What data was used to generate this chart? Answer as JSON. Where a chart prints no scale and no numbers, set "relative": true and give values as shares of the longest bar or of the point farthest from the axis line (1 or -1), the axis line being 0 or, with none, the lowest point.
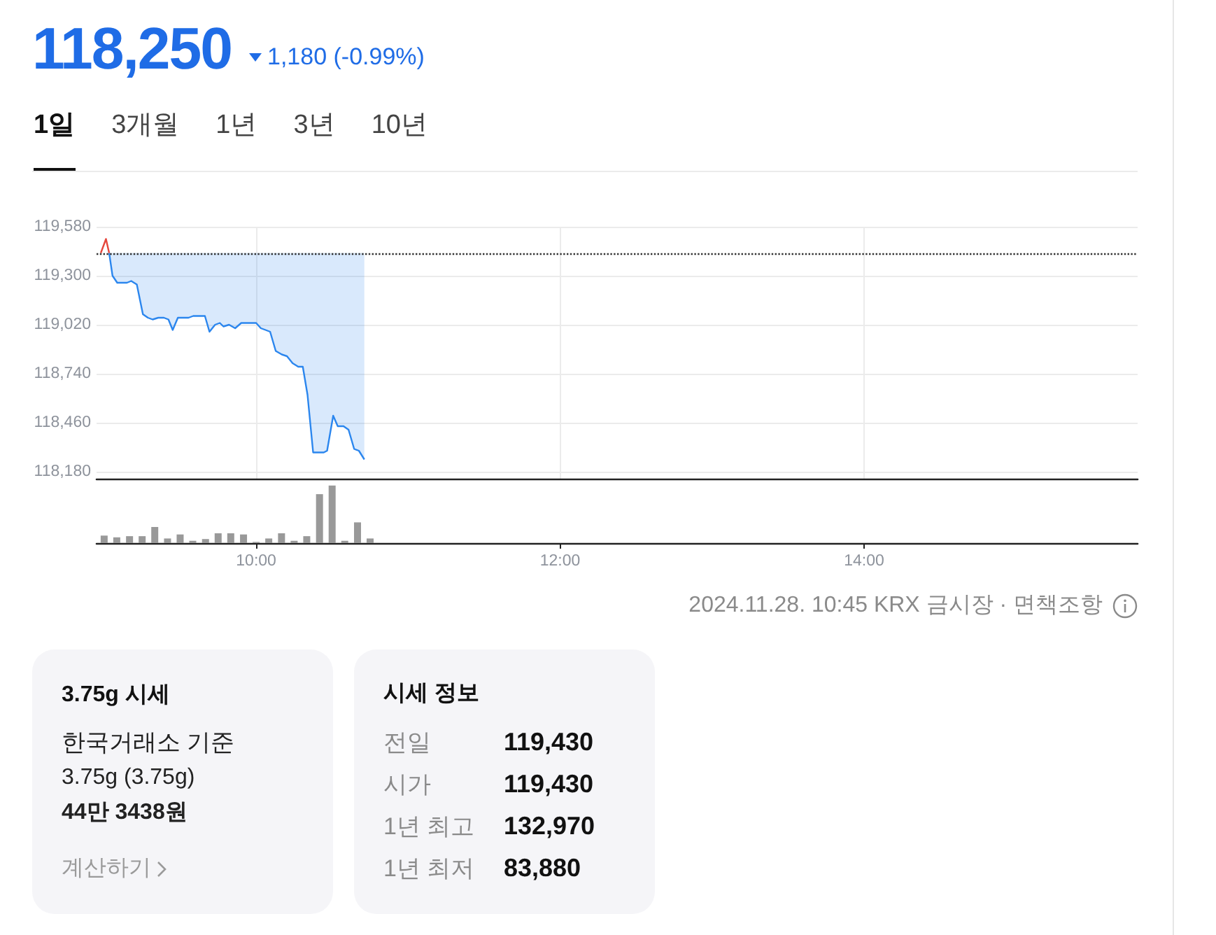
{
  "chart_data": [
    {
      "type": "other",
      "title": "118,250",
      "subtitle": "1,180 (-0.99%)",
      "annotations": [
        "1일",
        "3개월",
        "1년",
        "3년",
        "10년"
      ]
    },
    {
      "type": "line",
      "series": [
        {
          "type": "line",
          "color": "#2b86ee",
          "x": [
            9.033,
            9.055,
            9.086,
            9.11,
            9.15,
            9.178,
            9.215,
            9.255,
            9.288,
            9.319,
            9.356,
            9.393,
            9.423,
            9.451,
            9.485,
            9.518,
            9.555,
            9.586,
            9.632,
            9.663,
            9.693,
            9.73,
            9.761,
            9.785,
            9.822,
            9.862,
            9.902,
            9.93,
            9.963,
            10.0,
            10.031,
            10.062,
            10.092,
            10.129,
            10.169,
            10.203,
            10.24,
            10.277,
            10.307,
            10.338,
            10.375,
            10.415,
            10.445,
            10.467,
            10.507,
            10.537,
            10.575,
            10.608,
            10.645,
            10.676,
            10.712
          ],
          "values": [
            119430,
            119300,
            119260,
            119260,
            119260,
            119270,
            119250,
            119080,
            119060,
            119050,
            119060,
            119060,
            119050,
            118990,
            119060,
            119060,
            119060,
            119070,
            119070,
            119070,
            118980,
            119020,
            119030,
            119010,
            119020,
            119000,
            119030,
            119030,
            119030,
            119030,
            119000,
            118990,
            118980,
            118870,
            118850,
            118840,
            118800,
            118780,
            118780,
            118620,
            118290,
            118290,
            118290,
            118300,
            118500,
            118440,
            118440,
            118420,
            118310,
            118300,
            118250
          ],
          "lower": [
            119430,
            119300,
            119260,
            119260,
            119260,
            119270,
            119250,
            119080,
            119060,
            119050,
            119060,
            119060,
            119050,
            118990,
            119060,
            119060,
            119060,
            119070,
            119070,
            119070,
            118980,
            119020,
            119030,
            119010,
            119020,
            119000,
            119030,
            119030,
            119030,
            119030,
            119000,
            118990,
            118980,
            118870,
            118850,
            118840,
            118800,
            118780,
            118780,
            118620,
            118290,
            118290,
            118290,
            118300,
            118500,
            118440,
            118440,
            118420,
            118310,
            118300,
            118250
          ],
          "upper": [
            119430,
            119430,
            119430,
            119430,
            119430,
            119430,
            119430,
            119430,
            119430,
            119430,
            119430,
            119430,
            119430,
            119430,
            119430,
            119430,
            119430,
            119430,
            119430,
            119430,
            119430,
            119430,
            119430,
            119430,
            119430,
            119430,
            119430,
            119430,
            119430,
            119430,
            119430,
            119430,
            119430,
            119430,
            119430,
            119430,
            119430,
            119430,
            119430,
            119430,
            119430,
            119430,
            119430,
            119430,
            119430,
            119430,
            119430,
            119430,
            119430,
            119430,
            119430
          ]
        },
        {
          "type": "line",
          "color": "#e5463c",
          "x": [
            8.978,
            9.012,
            9.033
          ],
          "values": [
            119430,
            119510,
            119430
          ]
        }
      ],
      "xlim": [
        8.95,
        15.8
      ],
      "xticks": [
        {
          "value": 10,
          "label": null
        },
        {
          "value": 12,
          "label": null
        },
        {
          "value": 14,
          "label": null
        }
      ],
      "ylim": [
        118140,
        119580
      ],
      "yticks": [
        {
          "value": 118180,
          "label": "118,180"
        },
        {
          "value": 118460,
          "label": "118,460"
        },
        {
          "value": 118740,
          "label": "118,740"
        },
        {
          "value": 119020,
          "label": "119,020"
        },
        {
          "value": 119300,
          "label": "119,300"
        },
        {
          "value": 119580,
          "label": "119,580"
        }
      ],
      "grid": true,
      "tick_labels": "y",
      "ref_lines": [
        {
          "axis": "y",
          "value": 119430,
          "color": "#333333",
          "line_style": "dotted"
        }
      ]
    },
    {
      "type": "bar",
      "x": [
        9.0,
        9.083,
        9.167,
        9.25,
        9.333,
        9.417,
        9.5,
        9.583,
        9.667,
        9.75,
        9.833,
        9.917,
        10.0,
        10.083,
        10.167,
        10.25,
        10.333,
        10.417,
        10.5,
        10.583,
        10.667,
        10.75
      ],
      "values": [
        0.13,
        0.1,
        0.12,
        0.12,
        0.28,
        0.08,
        0.15,
        0.04,
        0.07,
        0.17,
        0.17,
        0.15,
        0.02,
        0.08,
        0.17,
        0.04,
        0.12,
        0.85,
        1,
        0.04,
        0.36,
        0.08
      ],
      "color": "#999999",
      "relative": true,
      "xlim": [
        8.95,
        15.8
      ],
      "xticks": [
        {
          "value": 10,
          "label": "10:00"
        },
        {
          "value": 12,
          "label": "12:00"
        },
        {
          "value": 14,
          "label": "14:00"
        }
      ],
      "tick_labels": "x",
      "annotations": [
        "2024.11.28. 10:45 KRX 금시장 · 면책조항"
      ]
    },
    {
      "type": "other",
      "title": "3.75g 시세",
      "annotations": [
        "한국거래소 기준",
        "3.75g (3.75g)",
        "44만 3438원",
        "계산하기"
      ]
    },
    {
      "type": "other",
      "title": "시세 정보",
      "annotations": [
        "전일",
        "119,430",
        "시가",
        "119,430",
        "1년 최고",
        "132,970",
        "1년 최저",
        "83,880"
      ]
    }
  ]
}
